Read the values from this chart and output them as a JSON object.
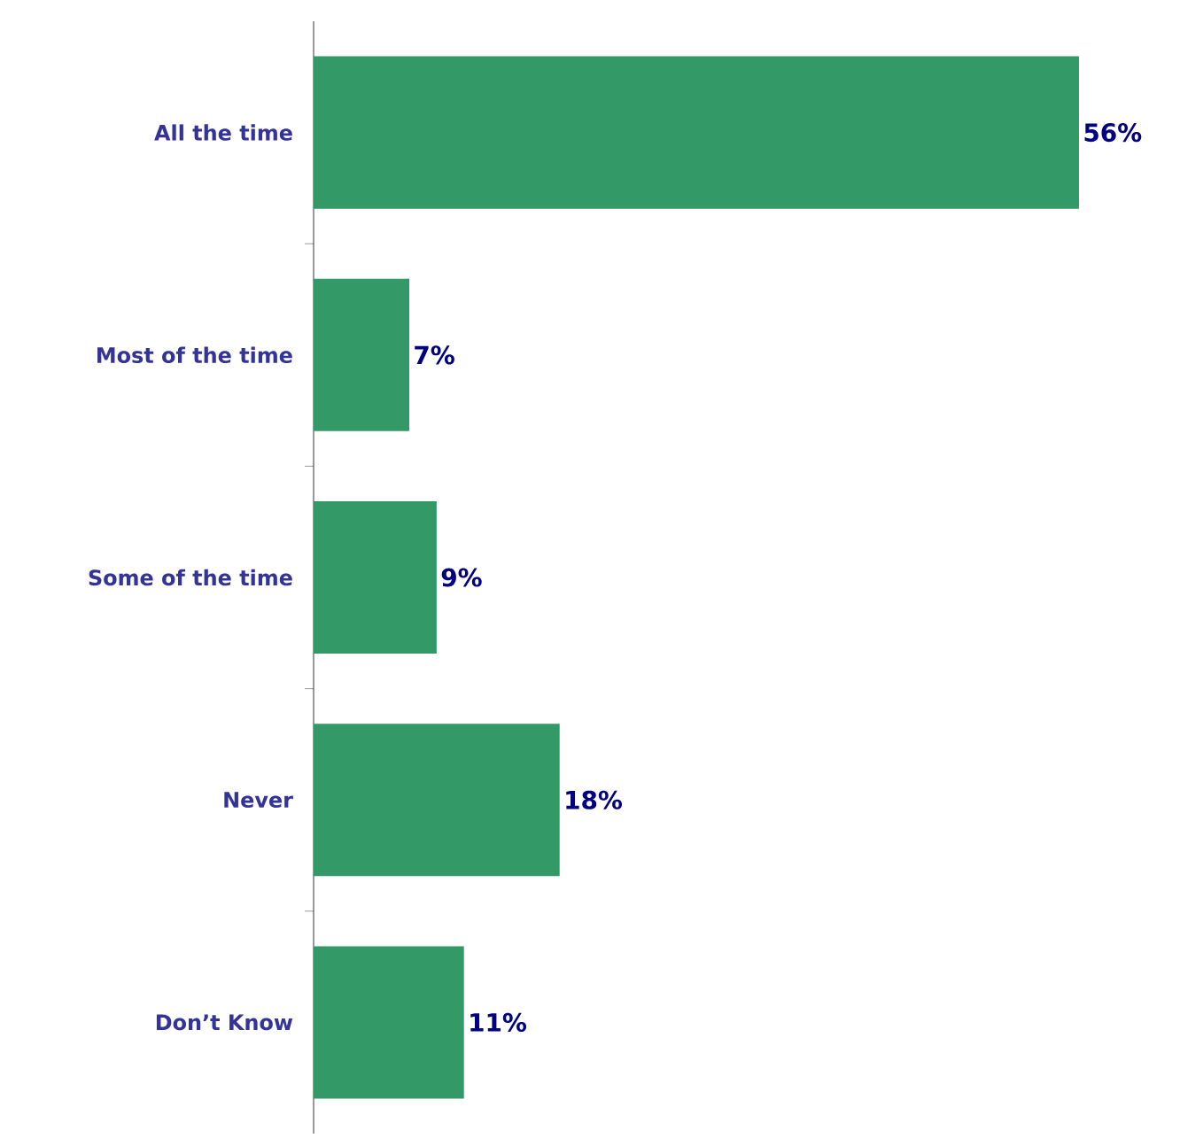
{
  "chart_data": {
    "type": "bar",
    "orientation": "horizontal",
    "categories": [
      "All the time",
      "Most of the time",
      "Some of the time",
      "Never",
      "Don’t Know"
    ],
    "values": [
      56,
      7,
      9,
      18,
      11
    ],
    "value_labels": [
      "56%",
      "7%",
      "9%",
      "18%",
      "11%"
    ],
    "color": "#339966"
  }
}
